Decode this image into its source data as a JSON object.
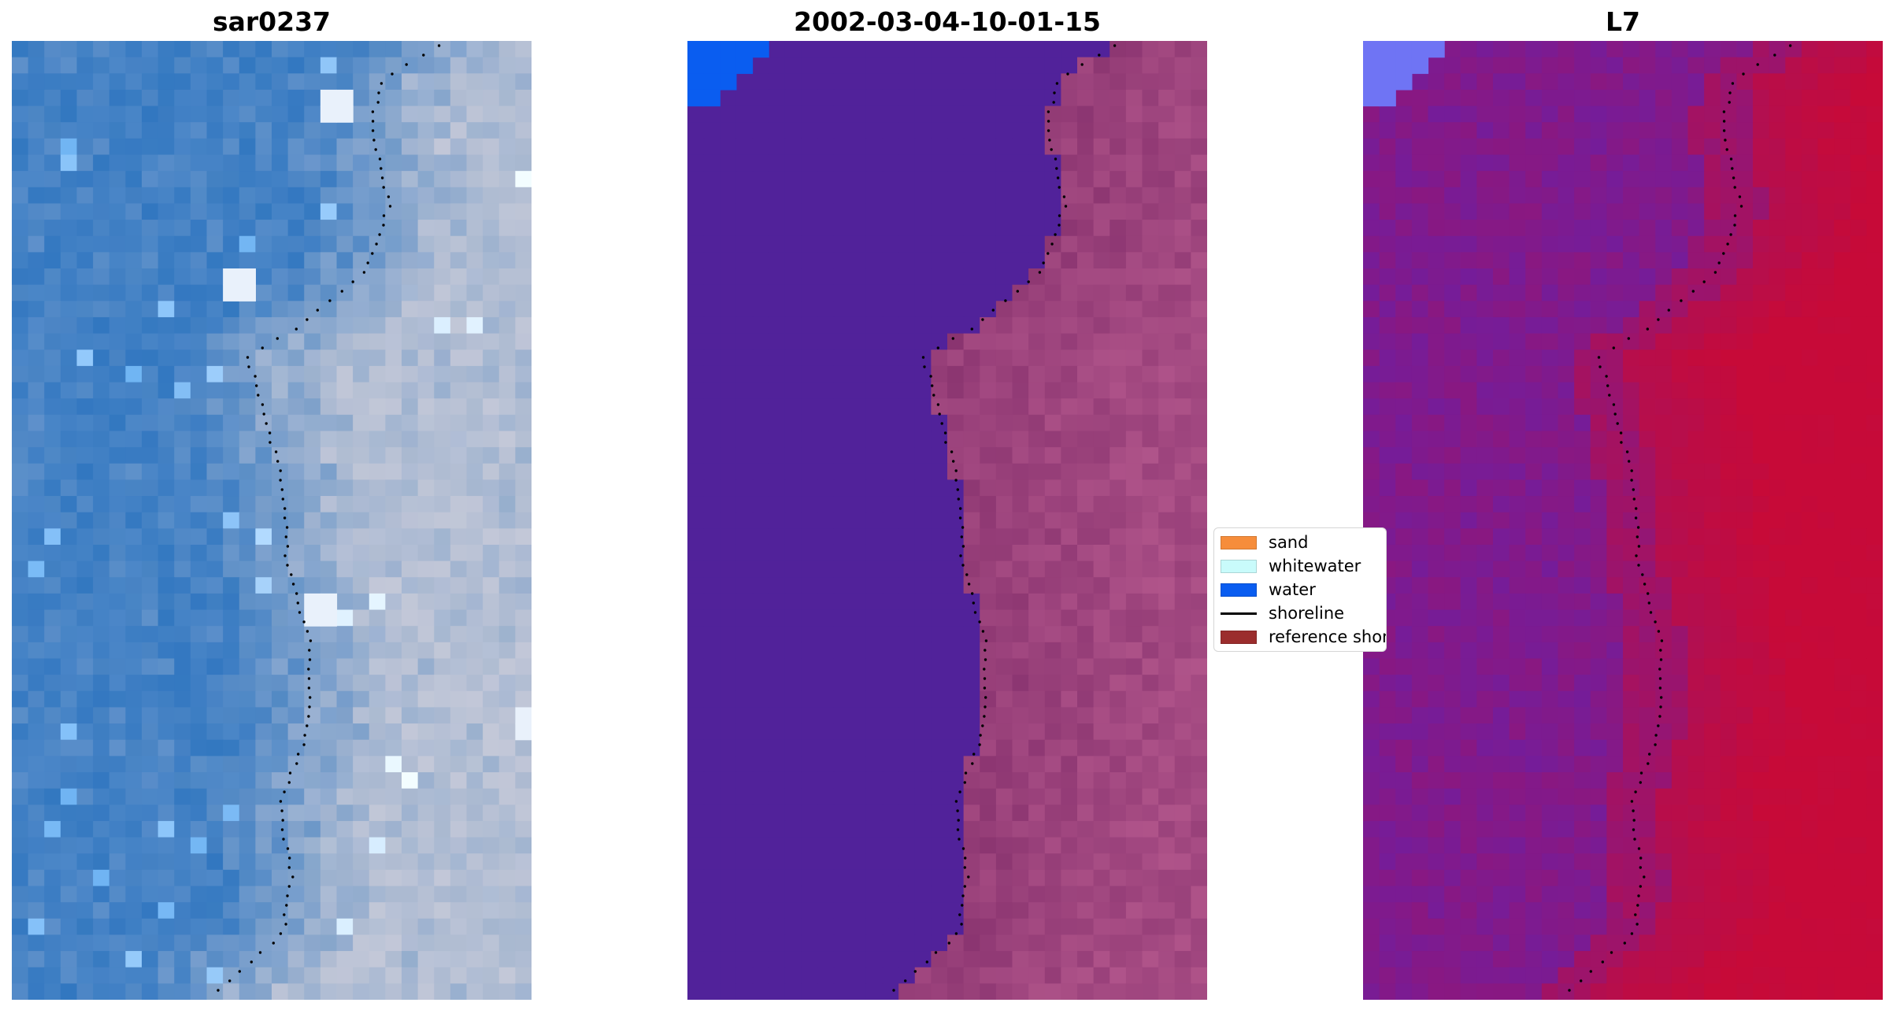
{
  "panels": [
    {
      "title": "sar0237",
      "style": "rgb"
    },
    {
      "title": "2002-03-04-10-01-15",
      "style": "classified"
    },
    {
      "title": "L7",
      "style": "index"
    }
  ],
  "legend": {
    "items": [
      {
        "label": "sand",
        "kind": "patch",
        "color": "#f68d3b"
      },
      {
        "label": "whitewater",
        "kind": "patch",
        "color": "#c9fbfb"
      },
      {
        "label": "water",
        "kind": "patch",
        "color": "#0a5df0"
      },
      {
        "label": "shoreline",
        "kind": "line",
        "color": "#000000"
      },
      {
        "label": "reference shoreline buffer",
        "kind": "patch",
        "color": "#9b2d2d"
      }
    ]
  },
  "colors": {
    "classified_water_region": "#51229a",
    "classified_corner_water": "#0a5df0",
    "index_water_low": "#6a1fa6",
    "index_land_high": "#c70a38",
    "rgb_water": "#3f7fc4",
    "rgb_land": "#b6c0d4",
    "shoreline_dots": "#000000"
  }
}
